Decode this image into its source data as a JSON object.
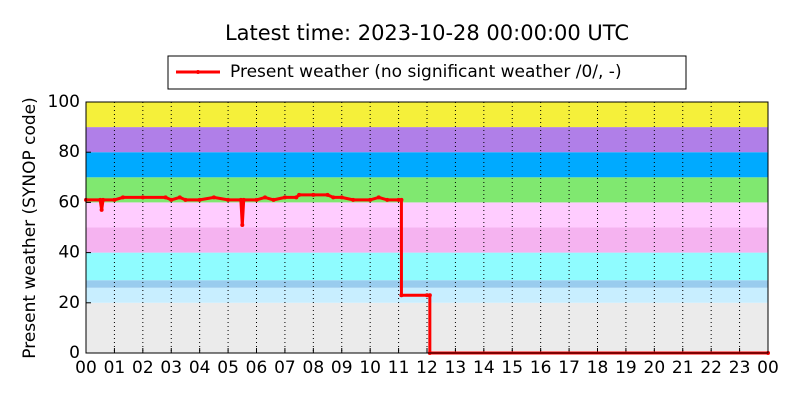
{
  "chart_data": {
    "type": "line",
    "title": "Latest time: 2023-10-28 00:00:00 UTC",
    "ylabel": "Present weather (SYNOP code)",
    "x": [
      0,
      0.5,
      0.55,
      0.6,
      1,
      1.3,
      2,
      2.8,
      3,
      3.3,
      3.5,
      4,
      4.5,
      5,
      5.45,
      5.5,
      5.55,
      6,
      6.3,
      6.6,
      7,
      7.4,
      7.5,
      8,
      8.5,
      8.7,
      9,
      9.4,
      10,
      10.3,
      10.6,
      11,
      11.1,
      11.1,
      12,
      12.1,
      12.1,
      24
    ],
    "series": [
      {
        "name": "Present weather (no significant weather /0/, -)",
        "color": "#ff0000",
        "values": [
          61,
          61,
          57,
          61,
          61,
          62,
          62,
          62,
          61,
          62,
          61,
          61,
          62,
          61,
          61,
          51,
          61,
          61,
          62,
          61,
          62,
          62,
          63,
          63,
          63,
          62,
          62,
          61,
          61,
          62,
          61,
          61,
          61,
          23,
          23,
          23,
          0,
          0
        ]
      }
    ],
    "xlim": [
      0,
      24
    ],
    "xticks": [
      {
        "value": 0,
        "label": "00"
      },
      {
        "value": 1,
        "label": "01"
      },
      {
        "value": 2,
        "label": "02"
      },
      {
        "value": 3,
        "label": "03"
      },
      {
        "value": 4,
        "label": "04"
      },
      {
        "value": 5,
        "label": "05"
      },
      {
        "value": 6,
        "label": "06"
      },
      {
        "value": 7,
        "label": "07"
      },
      {
        "value": 8,
        "label": "08"
      },
      {
        "value": 9,
        "label": "09"
      },
      10,
      11,
      12,
      13,
      14,
      15,
      16,
      17,
      18,
      19,
      20,
      21,
      22,
      23,
      {
        "value": 24,
        "label": "00"
      }
    ],
    "ylim": [
      0,
      100
    ],
    "yticks": [
      0,
      20,
      40,
      60,
      80,
      100
    ],
    "xgrid": true,
    "bands": [
      {
        "from": 0,
        "to": 20,
        "color": "#ebebeb"
      },
      {
        "from": 20,
        "to": 26,
        "color": "#c8eeff"
      },
      {
        "from": 26,
        "to": 29,
        "color": "#99ccee"
      },
      {
        "from": 29,
        "to": 40,
        "color": "#8ffcff"
      },
      {
        "from": 40,
        "to": 50,
        "color": "#f5b3f0"
      },
      {
        "from": 50,
        "to": 60,
        "color": "#ffccff"
      },
      {
        "from": 60,
        "to": 70,
        "color": "#80e870"
      },
      {
        "from": 70,
        "to": 80,
        "color": "#00aaff"
      },
      {
        "from": 80,
        "to": 90,
        "color": "#b07fe8"
      },
      {
        "from": 90,
        "to": 100,
        "color": "#f5f03a"
      }
    ],
    "legend": "top"
  }
}
